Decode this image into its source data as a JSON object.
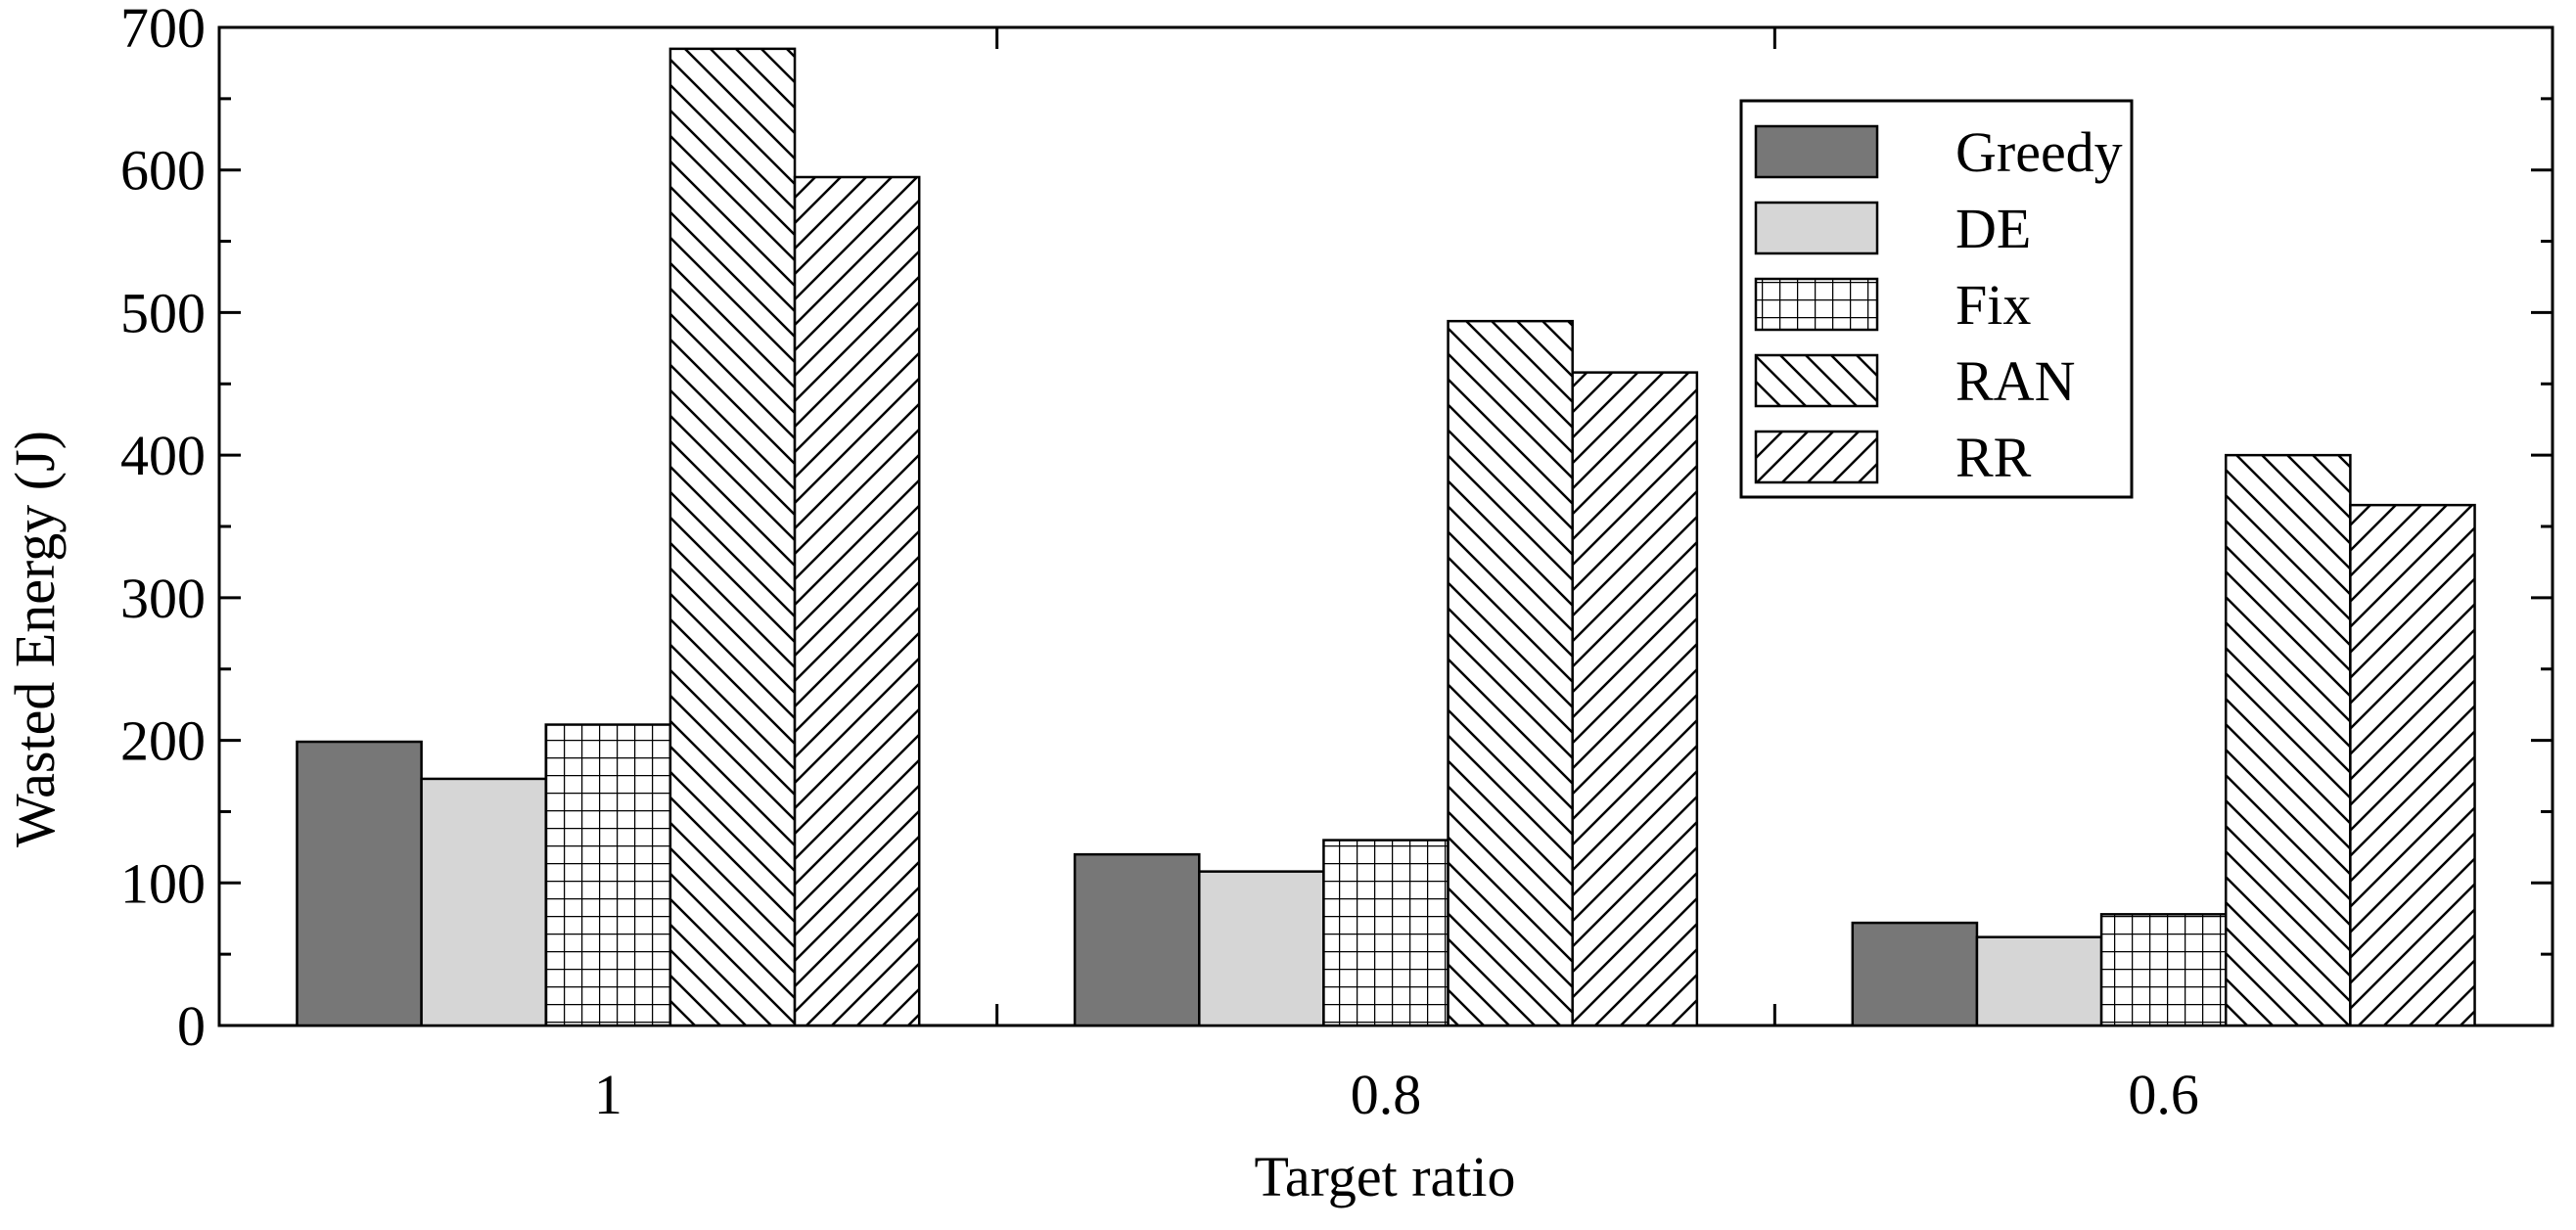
{
  "chart_data": {
    "type": "bar",
    "categories": [
      "1",
      "0.8",
      "0.6"
    ],
    "series": [
      {
        "name": "Greedy",
        "values": [
          199,
          120,
          72
        ],
        "fill": "#777777",
        "pattern": "solid"
      },
      {
        "name": "DE",
        "values": [
          173,
          108,
          62
        ],
        "fill": "#d6d6d6",
        "pattern": "solid"
      },
      {
        "name": "Fix",
        "values": [
          211,
          130,
          78
        ],
        "fill": "#ffffff",
        "pattern": "grid"
      },
      {
        "name": "RAN",
        "values": [
          685,
          494,
          400
        ],
        "fill": "#ffffff",
        "pattern": "backslash"
      },
      {
        "name": "RR",
        "values": [
          595,
          458,
          365
        ],
        "fill": "#ffffff",
        "pattern": "slash"
      }
    ],
    "xlabel": "Target ratio",
    "ylabel": "Wasted Energy (J)",
    "ylim": [
      0,
      700
    ],
    "yticks": [
      "0",
      "100",
      "200",
      "300",
      "400",
      "500",
      "600",
      "700"
    ],
    "legend_position": "top-right",
    "grid": false
  }
}
